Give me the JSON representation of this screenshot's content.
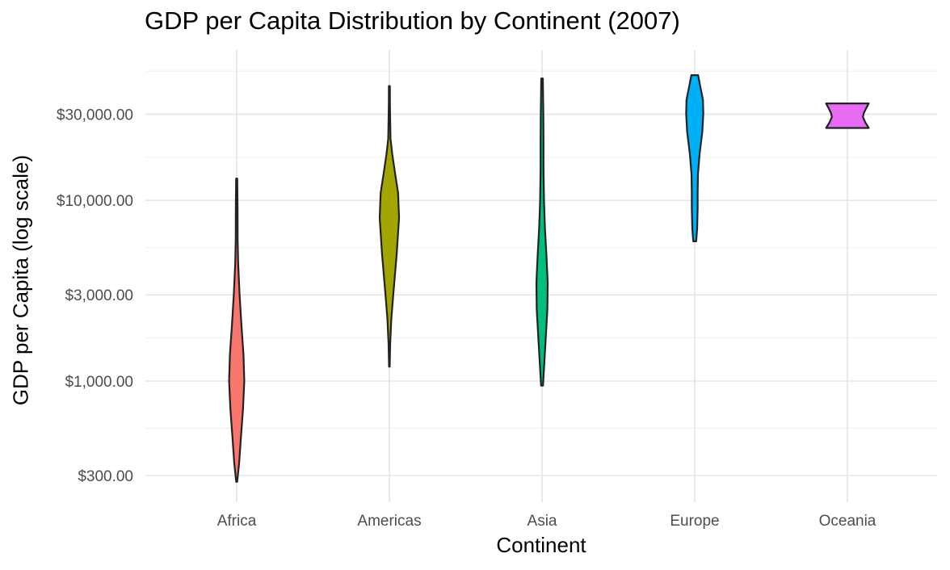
{
  "chart_data": {
    "type": "violin",
    "title": "GDP per Capita Distribution by Continent (2007)",
    "xlabel": "Continent",
    "ylabel": "GDP per Capita (log scale)",
    "y_scale": "log10",
    "ylim": [
      250,
      55000
    ],
    "y_ticks": [
      300,
      1000,
      3000,
      10000,
      30000
    ],
    "y_tick_labels": [
      "$300.00",
      "$1,000.00",
      "$3,000.00",
      "$10,000.00",
      "$30,000.00"
    ],
    "grid": true,
    "legend": "none",
    "categories": [
      "Africa",
      "Americas",
      "Asia",
      "Europe",
      "Oceania"
    ],
    "series": [
      {
        "category": "Africa",
        "color": "#F8766D",
        "min": 277,
        "max": 13206,
        "profile": [
          [
            277,
            0.05
          ],
          [
            350,
            0.25
          ],
          [
            500,
            0.45
          ],
          [
            700,
            0.65
          ],
          [
            1000,
            0.78
          ],
          [
            1400,
            0.7
          ],
          [
            2000,
            0.5
          ],
          [
            3000,
            0.3
          ],
          [
            4500,
            0.15
          ],
          [
            6000,
            0.1
          ],
          [
            9000,
            0.09
          ],
          [
            13206,
            0.06
          ]
        ]
      },
      {
        "category": "Americas",
        "color": "#A3A500",
        "min": 1202,
        "max": 42952,
        "profile": [
          [
            1202,
            0.03
          ],
          [
            1600,
            0.08
          ],
          [
            2200,
            0.2
          ],
          [
            3000,
            0.4
          ],
          [
            5000,
            0.75
          ],
          [
            8000,
            1.0
          ],
          [
            11000,
            0.9
          ],
          [
            14000,
            0.6
          ],
          [
            18000,
            0.3
          ],
          [
            22000,
            0.12
          ],
          [
            28000,
            0.08
          ],
          [
            34000,
            0.06
          ],
          [
            42952,
            0.05
          ]
        ]
      },
      {
        "category": "Asia",
        "color": "#00BF7D",
        "min": 944,
        "max": 47307,
        "profile": [
          [
            944,
            0.1
          ],
          [
            1300,
            0.25
          ],
          [
            1800,
            0.4
          ],
          [
            2500,
            0.55
          ],
          [
            3500,
            0.58
          ],
          [
            5000,
            0.45
          ],
          [
            7000,
            0.3
          ],
          [
            10000,
            0.2
          ],
          [
            15000,
            0.15
          ],
          [
            22000,
            0.15
          ],
          [
            30000,
            0.13
          ],
          [
            40000,
            0.1
          ],
          [
            47307,
            0.08
          ]
        ]
      },
      {
        "category": "Europe",
        "color": "#00B0F6",
        "min": 5937,
        "max": 49357,
        "profile": [
          [
            5937,
            0.15
          ],
          [
            7000,
            0.25
          ],
          [
            9000,
            0.3
          ],
          [
            11000,
            0.3
          ],
          [
            14000,
            0.33
          ],
          [
            18000,
            0.5
          ],
          [
            24000,
            0.78
          ],
          [
            30000,
            0.88
          ],
          [
            36000,
            0.85
          ],
          [
            42000,
            0.6
          ],
          [
            49357,
            0.35
          ]
        ]
      },
      {
        "category": "Oceania",
        "color": "#E76BF3",
        "min": 25185,
        "max": 34435,
        "profile": [
          [
            25185,
            2.2
          ],
          [
            27000,
            1.85
          ],
          [
            29000,
            1.6
          ],
          [
            30500,
            1.7
          ],
          [
            32500,
            1.95
          ],
          [
            34435,
            2.2
          ]
        ]
      }
    ]
  }
}
